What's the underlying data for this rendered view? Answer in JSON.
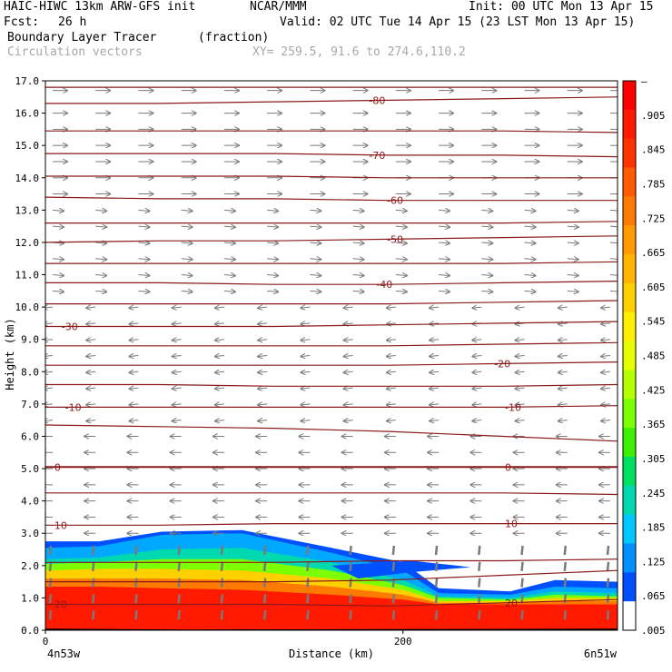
{
  "header": {
    "model": "HAIC-HIWC 13km ARW-GFS init",
    "org": "NCAR/MMM",
    "init": "Init: 00 UTC Mon 13 Apr 15",
    "fcst_label": "Fcst:",
    "fcst_value": "26 h",
    "valid": "Valid: 02 UTC Tue 14 Apr 15 (23 LST Mon 13 Apr 15)",
    "field": "Boundary Layer Tracer",
    "field_units": "(fraction)",
    "vectors": "Circulation vectors",
    "xy": "XY= 259.5, 91.6 to 274.6,110.2"
  },
  "colors": {
    "contour": "#8b1a1a",
    "vector": "#7a7a7a",
    "background": "#ffffff"
  },
  "chart_data": {
    "type": "heatmap",
    "xlabel": "Distance (km)",
    "ylabel": "Height (km)",
    "ylim": [
      0,
      17
    ],
    "xlim": [
      0,
      320
    ],
    "yticks": [
      "0.0",
      "1.0",
      "2.0",
      "3.0",
      "4.0",
      "5.0",
      "6.0",
      "7.0",
      "8.0",
      "9.0",
      "10.0",
      "11.0",
      "12.0",
      "13.0",
      "14.0",
      "15.0",
      "16.0",
      "17.0"
    ],
    "xticks": [
      {
        "value": 0,
        "label": "0"
      },
      {
        "value": 200,
        "label": "200"
      }
    ],
    "x_endpoints": {
      "left": "4n53w",
      "right": "6n51w"
    },
    "colorbar": {
      "labels": [
        "–",
        ".905",
        ".845",
        ".785",
        ".725",
        ".665",
        ".605",
        ".545",
        ".485",
        ".425",
        ".365",
        ".305",
        ".245",
        ".185",
        ".125",
        ".065",
        ".005"
      ],
      "colors": [
        "#ff0000",
        "#ff1a00",
        "#ff3300",
        "#ff5a00",
        "#ff7a00",
        "#ff9a00",
        "#ffb400",
        "#ffd000",
        "#ffee00",
        "#e6ff00",
        "#b4ff00",
        "#7cff00",
        "#3cf000",
        "#00e060",
        "#00d8b0",
        "#00c8ff",
        "#0090ff",
        "#0050ff",
        "#ffffff"
      ]
    },
    "contours": [
      {
        "label": "-80",
        "z": [
          16.3,
          16.3,
          16.35,
          16.4,
          16.45,
          16.5
        ]
      },
      {
        "label": "-70",
        "z": [
          14.75,
          14.75,
          14.75,
          14.7,
          14.7,
          14.65
        ]
      },
      {
        "label": "-60",
        "z": [
          13.4,
          13.35,
          13.35,
          13.3,
          13.3,
          13.3
        ]
      },
      {
        "label": "-50",
        "z": [
          12.0,
          12.05,
          12.05,
          12.1,
          12.15,
          12.2
        ]
      },
      {
        "label": "-40",
        "z": [
          10.75,
          10.75,
          10.7,
          10.7,
          10.75,
          10.8
        ]
      },
      {
        "label": "-30",
        "z": [
          9.4,
          9.4,
          9.4,
          9.45,
          9.5,
          9.55
        ]
      },
      {
        "label": "-20",
        "z": [
          8.2,
          8.2,
          8.2,
          8.2,
          8.25,
          8.3
        ]
      },
      {
        "label": "-10",
        "z": [
          6.9,
          6.9,
          6.9,
          6.9,
          6.9,
          6.95
        ]
      },
      {
        "label": "0",
        "z": [
          5.05,
          5.05,
          5.05,
          5.05,
          5.05,
          5.05
        ]
      },
      {
        "label": "10",
        "z": [
          3.25,
          3.25,
          3.3,
          3.3,
          3.3,
          3.3
        ]
      },
      {
        "label": "20",
        "z": [
          0.8,
          0.8,
          0.8,
          0.75,
          0.85,
          0.95
        ]
      }
    ],
    "unlabeled_contours": [
      [
        16.8,
        16.8,
        16.8,
        16.8,
        16.8,
        16.8
      ],
      [
        15.45,
        15.45,
        15.45,
        15.45,
        15.45,
        15.4
      ],
      [
        14.05,
        14.05,
        14.05,
        14.0,
        14.0,
        14.0
      ],
      [
        12.6,
        12.6,
        12.6,
        12.6,
        12.6,
        12.65
      ],
      [
        11.35,
        11.35,
        11.35,
        11.35,
        11.35,
        11.4
      ],
      [
        10.1,
        10.1,
        10.1,
        10.1,
        10.15,
        10.2
      ],
      [
        8.8,
        8.8,
        8.8,
        8.8,
        8.85,
        8.9
      ],
      [
        7.6,
        7.6,
        7.55,
        7.55,
        7.55,
        7.6
      ],
      [
        6.35,
        6.3,
        6.25,
        6.15,
        6.0,
        5.85
      ],
      [
        4.25,
        4.25,
        4.25,
        4.25,
        4.25,
        4.2
      ],
      [
        2.1,
        2.1,
        2.1,
        2.15,
        2.15,
        2.2
      ],
      [
        1.5,
        1.5,
        1.5,
        1.55,
        1.7,
        1.85
      ]
    ],
    "tracer_layers": [
      {
        "value": 0.005,
        "top": [
          2.75,
          2.75,
          3.05,
          3.1,
          2.55,
          2.1,
          1.3,
          1.2,
          1.55,
          1.5
        ]
      },
      {
        "value": 0.065,
        "top": [
          2.55,
          2.6,
          2.95,
          3.0,
          2.4,
          1.85,
          1.15,
          1.1,
          1.35,
          1.3
        ]
      },
      {
        "value": 0.185,
        "top": [
          2.2,
          2.25,
          2.5,
          2.55,
          2.1,
          1.55,
          1.05,
          1.0,
          1.2,
          1.15
        ]
      },
      {
        "value": 0.305,
        "top": [
          2.05,
          2.1,
          2.2,
          2.2,
          1.85,
          1.4,
          1.0,
          0.95,
          1.1,
          1.05
        ]
      },
      {
        "value": 0.545,
        "top": [
          1.85,
          1.9,
          1.9,
          1.85,
          1.6,
          1.25,
          0.9,
          0.9,
          1.0,
          1.0
        ]
      },
      {
        "value": 0.725,
        "top": [
          1.6,
          1.6,
          1.6,
          1.55,
          1.35,
          1.1,
          0.85,
          0.85,
          0.9,
          0.9
        ]
      }
    ],
    "tracer_x": [
      0,
      30,
      65,
      110,
      160,
      200,
      220,
      260,
      285,
      320
    ],
    "vector_rows": [
      0.5,
      1.0,
      1.5,
      2.0,
      2.5,
      3.0,
      3.5,
      4.0,
      4.5,
      5.0,
      5.5,
      6.0,
      6.5,
      7.0,
      7.5,
      8.0,
      8.5,
      9.0,
      9.5,
      10.0,
      10.5,
      11.0,
      11.5,
      12.0,
      12.5,
      13.0,
      13.5,
      14.0,
      14.5,
      15.0,
      15.5,
      16.0,
      16.7
    ]
  }
}
